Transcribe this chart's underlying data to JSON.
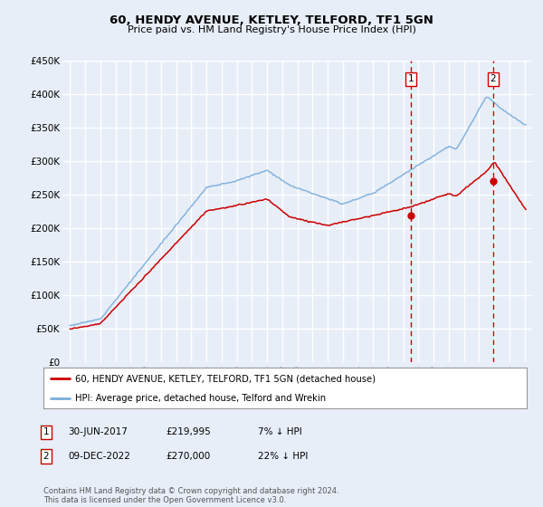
{
  "title": "60, HENDY AVENUE, KETLEY, TELFORD, TF1 5GN",
  "subtitle": "Price paid vs. HM Land Registry's House Price Index (HPI)",
  "ylim": [
    0,
    450000
  ],
  "yticks": [
    0,
    50000,
    100000,
    150000,
    200000,
    250000,
    300000,
    350000,
    400000,
    450000
  ],
  "ytick_labels": [
    "£0",
    "£50K",
    "£100K",
    "£150K",
    "£200K",
    "£250K",
    "£300K",
    "£350K",
    "£400K",
    "£450K"
  ],
  "background_color": "#e8eef8",
  "plot_bg_color": "#e8eef8",
  "grid_color": "#ffffff",
  "red_color": "#cc0000",
  "blue_color": "#7aaddb",
  "marker1_price": 219995,
  "marker1_x": 2017.5,
  "marker2_price": 270000,
  "marker2_x": 2022.92,
  "legend_line1": "60, HENDY AVENUE, KETLEY, TELFORD, TF1 5GN (detached house)",
  "legend_line2": "HPI: Average price, detached house, Telford and Wrekin",
  "footer": "Contains HM Land Registry data © Crown copyright and database right 2024.\nThis data is licensed under the Open Government Licence v3.0.",
  "xstart": 1994.5,
  "xend": 2025.5
}
